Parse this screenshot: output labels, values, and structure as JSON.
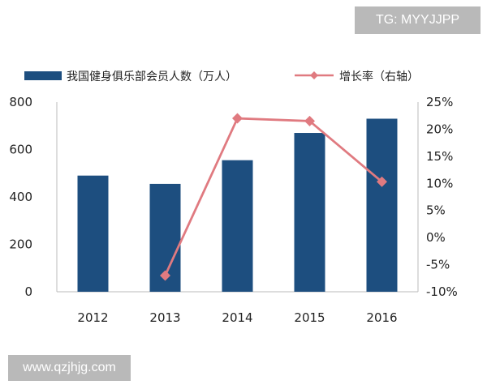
{
  "watermarks": {
    "top": "TG: MYYJJPP",
    "bottom": "www.qzjhjg.com"
  },
  "colors": {
    "bar": "#1d4e7f",
    "line": "#e07a80",
    "axis": "#bbbbbb"
  },
  "chart_data": {
    "type": "bar",
    "title": "",
    "categories": [
      "2012",
      "2013",
      "2014",
      "2015",
      "2016"
    ],
    "series": [
      {
        "name": "我国健身俱乐部会员人数（万人）",
        "type": "bar",
        "axis": "left",
        "values": [
          490,
          455,
          555,
          670,
          730
        ]
      },
      {
        "name": "增长率（右轴）",
        "type": "line",
        "axis": "right",
        "marker": "diamond",
        "values": [
          null,
          -7,
          22,
          21.5,
          10.3
        ]
      }
    ],
    "y_left": {
      "min": 0,
      "max": 800,
      "ticks": [
        0,
        200,
        400,
        600,
        800
      ]
    },
    "y_right": {
      "min": -10,
      "max": 25,
      "ticks": [
        -10,
        -5,
        0,
        5,
        10,
        15,
        20,
        25
      ],
      "tick_labels": [
        "-10%",
        "-5%",
        "0%",
        "5%",
        "10%",
        "15%",
        "20%",
        "25%"
      ]
    },
    "grid": false,
    "legend": "top"
  }
}
